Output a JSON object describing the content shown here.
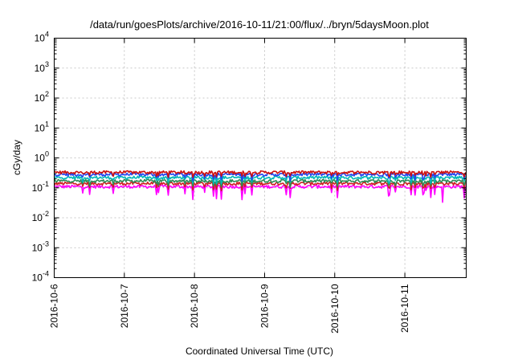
{
  "chart_data": {
    "type": "line",
    "title": "/data/run/goesPlots/archive/2016-10-11/21:00/flux/../bryn/5daysMoon.plot",
    "xlabel": "Coordinated Universal Time (UTC)",
    "ylabel": "cGy/day",
    "yscale": "log",
    "ylim": [
      0.0001,
      10000
    ],
    "xlim": [
      "2016-10-06",
      "2016-10-11T21:00"
    ],
    "xticks": [
      {
        "label": "2016-10-6",
        "day": 0
      },
      {
        "label": "2016-10-7",
        "day": 1
      },
      {
        "label": "2016-10-8",
        "day": 2
      },
      {
        "label": "2016-10-9",
        "day": 3
      },
      {
        "label": "2016-10-10",
        "day": 4
      },
      {
        "label": "2016-10-11",
        "day": 5
      }
    ],
    "yticks": [
      {
        "base": "10",
        "exp": "-4",
        "value": 0.0001
      },
      {
        "base": "10",
        "exp": "-3",
        "value": 0.001
      },
      {
        "base": "10",
        "exp": "-2",
        "value": 0.01
      },
      {
        "base": "10",
        "exp": "-1",
        "value": 0.1
      },
      {
        "base": "10",
        "exp": "0",
        "value": 1
      },
      {
        "base": "10",
        "exp": "1",
        "value": 10
      },
      {
        "base": "10",
        "exp": "2",
        "value": 100
      },
      {
        "base": "10",
        "exp": "3",
        "value": 1000
      },
      {
        "base": "10",
        "exp": "4",
        "value": 10000
      }
    ],
    "grid": true,
    "series": [
      {
        "color": "#ff00ff",
        "level": 0.11,
        "dip_depth": 0.55
      },
      {
        "color": "#cc2222",
        "level": 0.14,
        "dip_depth": 0.35
      },
      {
        "color": "#2e8b57",
        "level": 0.17,
        "dip_depth": 0.3
      },
      {
        "color": "#00b8b8",
        "level": 0.22,
        "dip_depth": 0.3
      },
      {
        "color": "#2244ee",
        "level": 0.28,
        "dip_depth": 0.3
      },
      {
        "color": "#cc1111",
        "level": 0.33,
        "dip_depth": 0.25
      }
    ]
  }
}
